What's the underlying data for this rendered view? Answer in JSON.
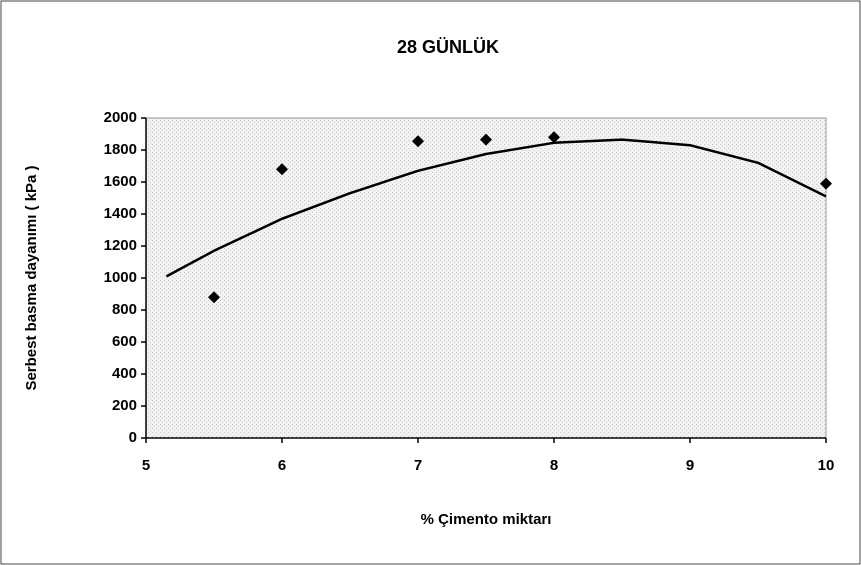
{
  "chart_data": {
    "type": "scatter",
    "title": "28 GÜNLÜK",
    "x_label": "% Çimento miktarı",
    "y_label": "Serbest basma dayanımı ( kPa )",
    "xlim": [
      5,
      10
    ],
    "xticks": [
      5,
      6,
      7,
      8,
      9,
      10
    ],
    "ylim": [
      0,
      2000
    ],
    "yticks": [
      0,
      200,
      400,
      600,
      800,
      1000,
      1200,
      1400,
      1600,
      1800,
      2000
    ],
    "series": [
      {
        "type": "scatter",
        "color": "#000000",
        "x": [
          5.5,
          6,
          7,
          7.5,
          8,
          10
        ],
        "values": [
          880,
          1680,
          1855,
          1865,
          1880,
          1590
        ]
      },
      {
        "type": "line",
        "color": "#000000",
        "x": [
          5.15,
          5.5,
          6,
          6.5,
          7,
          7.5,
          8,
          8.5,
          9,
          9.5,
          10
        ],
        "values": [
          1010,
          1170,
          1370,
          1530,
          1670,
          1775,
          1845,
          1865,
          1830,
          1720,
          1510
        ]
      }
    ]
  }
}
